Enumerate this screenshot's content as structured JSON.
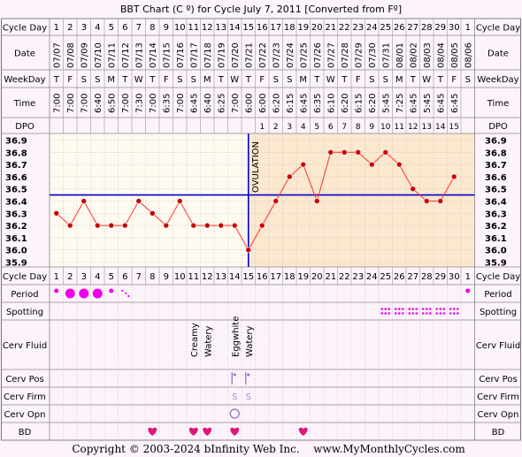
{
  "title": "BBT Chart (C º) for Cycle July 7, 2011  [Converted from Fº]",
  "row_labels": {
    "cycle_day": "Cycle Day",
    "date": "Date",
    "weekday": "WeekDay",
    "time": "Time",
    "dpo": "DPO",
    "period": "Period",
    "spotting": "Spotting",
    "cerv_fluid": "Cerv Fluid",
    "cerv_pos": "Cerv Pos",
    "cerv_firm": "Cerv Firm",
    "cerv_opn": "Cerv Opn",
    "bd": "BD"
  },
  "ovulation_label": "OVULATION",
  "copyright": "Copyright © 2003-2024 bInfinity Web Inc.",
  "site": "www.MyMonthlyCycles.com",
  "colors": {
    "coverline": "#0000cc",
    "ovulation_line": "#0000cc",
    "luteal_bg": "#fbe8cf",
    "grid_bg": "#fffaf0",
    "temp_line": "#ff3030",
    "point": "#cc0000",
    "heart": "#e0177a",
    "period_dot": "#ee00ee"
  },
  "chart_data": {
    "type": "line",
    "title": "BBT Chart (C º) for Cycle July 7, 2011  [Converted from Fº]",
    "cycle_days": [
      1,
      2,
      3,
      4,
      5,
      6,
      7,
      8,
      9,
      10,
      11,
      12,
      13,
      14,
      15,
      16,
      17,
      18,
      19,
      20,
      21,
      22,
      23,
      24,
      25,
      26,
      27,
      28,
      29,
      30,
      1
    ],
    "dates": [
      "07/07",
      "07/08",
      "07/09",
      "07/10",
      "07/11",
      "07/12",
      "07/13",
      "07/14",
      "07/15",
      "07/16",
      "07/17",
      "07/18",
      "07/19",
      "07/20",
      "07/21",
      "07/22",
      "07/23",
      "07/24",
      "07/25",
      "07/26",
      "07/27",
      "07/28",
      "07/29",
      "07/30",
      "07/31",
      "08/01",
      "08/02",
      "08/03",
      "08/04",
      "08/05",
      "08/06"
    ],
    "weekdays": [
      "T",
      "F",
      "S",
      "S",
      "M",
      "T",
      "W",
      "T",
      "F",
      "S",
      "S",
      "M",
      "T",
      "W",
      "T",
      "F",
      "S",
      "S",
      "M",
      "T",
      "W",
      "T",
      "F",
      "S",
      "S",
      "M",
      "T",
      "W",
      "T",
      "F",
      "S"
    ],
    "times": [
      "7:00",
      "7:00",
      "7:00",
      "6:40",
      "6:50",
      "7:00",
      "7:30",
      "7:00",
      "6:35",
      "7:00",
      "6:45",
      "6:40",
      "6:25",
      "7:00",
      "6:00",
      "6:00",
      "6:20",
      "6:15",
      "6:45",
      "6:35",
      "6:10",
      "6:20",
      "6:15",
      "6:20",
      "5:45",
      "7:25",
      "6:45",
      "5:45",
      "6:45",
      "6:45",
      ""
    ],
    "dpo": [
      "",
      "",
      "",
      "",
      "",
      "",
      "",
      "",
      "",
      "",
      "",
      "",
      "",
      "",
      "",
      "1",
      "2",
      "3",
      "4",
      "5",
      "6",
      "7",
      "8",
      "9",
      "10",
      "11",
      "12",
      "13",
      "14",
      "15",
      ""
    ],
    "temperatures": [
      36.3,
      36.2,
      36.4,
      36.2,
      36.2,
      36.2,
      36.4,
      36.3,
      36.2,
      36.4,
      36.2,
      36.2,
      36.2,
      36.2,
      36.0,
      36.2,
      36.4,
      36.6,
      36.7,
      36.4,
      36.8,
      36.8,
      36.8,
      36.7,
      36.8,
      36.7,
      36.5,
      36.4,
      36.4,
      36.6,
      null
    ],
    "y_ticks": [
      36.9,
      36.8,
      36.7,
      36.6,
      36.5,
      36.4,
      36.3,
      36.2,
      36.1,
      36.0,
      35.9
    ],
    "ylim": [
      35.9,
      36.9
    ],
    "coverline": 36.45,
    "ovulation_day": 15,
    "grid": true
  },
  "period": [
    "small",
    "large",
    "large",
    "large",
    "small",
    "spotted",
    "",
    "",
    "",
    "",
    "",
    "",
    "",
    "",
    "",
    "",
    "",
    "",
    "",
    "",
    "",
    "",
    "",
    "",
    "",
    "",
    "",
    "",
    "",
    "",
    "small"
  ],
  "spotting_days": [
    25,
    26,
    27,
    28,
    29,
    30
  ],
  "cerv_fluid": {
    "11": "Creamy",
    "12": "Watery",
    "14": "Eggwhite",
    "15": "Watery"
  },
  "cerv_pos_days": [
    14,
    15
  ],
  "cerv_firm": {
    "14": "S",
    "15": "S"
  },
  "cerv_opn_days": [
    14
  ],
  "bd_days": [
    8,
    11,
    12,
    14,
    19
  ]
}
